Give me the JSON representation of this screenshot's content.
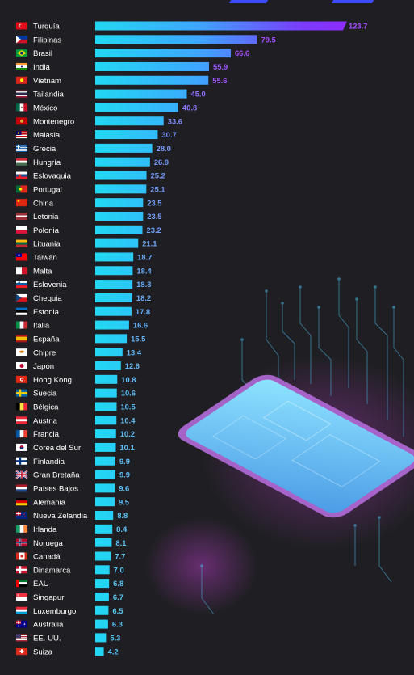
{
  "chart_data": {
    "type": "bar",
    "orientation": "horizontal",
    "title": "",
    "xlabel": "",
    "ylabel": "",
    "grid": false,
    "xlim": [
      0,
      123.7
    ],
    "categories": [
      "Turquía",
      "Filipinas",
      "Brasil",
      "India",
      "Vietnam",
      "Tailandia",
      "México",
      "Montenegro",
      "Malasia",
      "Grecia",
      "Hungría",
      "Eslovaquia",
      "Portugal",
      "China",
      "Letonia",
      "Polonia",
      "Lituania",
      "Taiwán",
      "Malta",
      "Eslovenia",
      "Chequia",
      "Estonia",
      "Italia",
      "España",
      "Chipre",
      "Japón",
      "Hong Kong",
      "Suecia",
      "Bélgica",
      "Austria",
      "Francia",
      "Corea del Sur",
      "Finlandia",
      "Gran Bretaña",
      "Países Bajos",
      "Alemania",
      "Nueva Zelandia",
      "Irlanda",
      "Noruega",
      "Canadá",
      "Dinamarca",
      "EAU",
      "Singapur",
      "Luxemburgo",
      "Australia",
      "EE. UU.",
      "Suiza"
    ],
    "values": [
      123.7,
      79.5,
      66.6,
      55.9,
      55.6,
      45.0,
      40.8,
      33.6,
      30.7,
      28.0,
      26.9,
      25.2,
      25.1,
      23.5,
      23.5,
      23.2,
      21.1,
      18.7,
      18.4,
      18.3,
      18.2,
      17.8,
      16.6,
      15.5,
      13.4,
      12.6,
      10.8,
      10.6,
      10.5,
      10.4,
      10.2,
      10.1,
      9.9,
      9.9,
      9.6,
      9.5,
      8.8,
      8.4,
      8.1,
      7.7,
      7.0,
      6.8,
      6.7,
      6.5,
      6.3,
      5.3,
      4.2
    ],
    "value_labels": [
      "123.7",
      "79.5",
      "66.6",
      "55.9",
      "55.6",
      "45.0",
      "40.8",
      "33.6",
      "30.7",
      "28.0",
      "26.9",
      "25.2",
      "25.1",
      "23.5",
      "23.5",
      "23.2",
      "21.1",
      "18.7",
      "18.4",
      "18.3",
      "18.2",
      "17.8",
      "16.6",
      "15.5",
      "13.4",
      "12.6",
      "10.8",
      "10.6",
      "10.5",
      "10.4",
      "10.2",
      "10.1",
      "9.9",
      "9.9",
      "9.6",
      "9.5",
      "8.8",
      "8.4",
      "8.1",
      "7.7",
      "7.0",
      "6.8",
      "6.7",
      "6.5",
      "6.3",
      "5.3",
      "4.2"
    ]
  },
  "colors": {
    "background": "#1f1f23",
    "bar_start": "#22d8f2",
    "bar_end": "#9b2cff",
    "label_text": "#ffffff",
    "value_low": "#4fd4f2",
    "value_high": "#a64dff",
    "phone_glow": "#c04bd8",
    "phone_screen": "#6fd6ff"
  }
}
